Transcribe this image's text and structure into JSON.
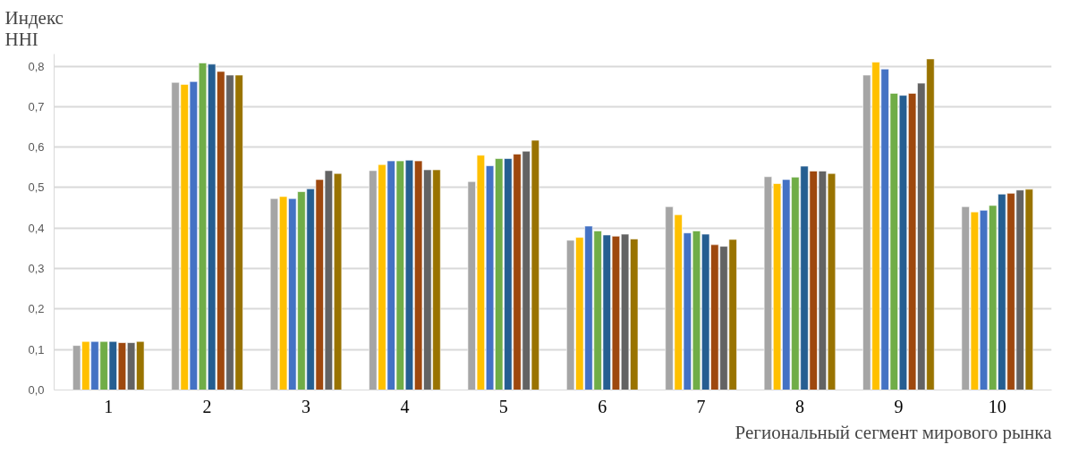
{
  "chart_data": {
    "type": "bar",
    "ylabel": "Индекс\nHHI",
    "xlabel": "Региональный сегмент мирового рынка",
    "categories": [
      "1",
      "2",
      "3",
      "4",
      "5",
      "6",
      "7",
      "8",
      "9",
      "10"
    ],
    "series": [
      {
        "color": "#a5a5a5",
        "values": [
          0.11,
          0.76,
          0.473,
          0.542,
          0.515,
          0.37,
          0.453,
          0.527,
          0.778,
          0.453
        ]
      },
      {
        "color": "#ffc000",
        "values": [
          0.12,
          0.755,
          0.478,
          0.557,
          0.58,
          0.377,
          0.433,
          0.51,
          0.81,
          0.44
        ]
      },
      {
        "color": "#4472c4",
        "values": [
          0.12,
          0.762,
          0.473,
          0.566,
          0.554,
          0.405,
          0.388,
          0.52,
          0.793,
          0.444
        ]
      },
      {
        "color": "#70ad47",
        "values": [
          0.12,
          0.808,
          0.49,
          0.566,
          0.572,
          0.393,
          0.393,
          0.526,
          0.733,
          0.456
        ]
      },
      {
        "color": "#255e91",
        "values": [
          0.12,
          0.805,
          0.497,
          0.568,
          0.572,
          0.383,
          0.385,
          0.553,
          0.728,
          0.484
        ]
      },
      {
        "color": "#9e480e",
        "values": [
          0.117,
          0.787,
          0.52,
          0.566,
          0.583,
          0.38,
          0.359,
          0.541,
          0.733,
          0.486
        ]
      },
      {
        "color": "#636363",
        "values": [
          0.117,
          0.778,
          0.542,
          0.544,
          0.59,
          0.385,
          0.355,
          0.541,
          0.758,
          0.494
        ]
      },
      {
        "color": "#997300",
        "values": [
          0.12,
          0.778,
          0.535,
          0.544,
          0.617,
          0.373,
          0.372,
          0.535,
          0.818,
          0.496
        ]
      }
    ],
    "ylim": [
      0,
      0.83
    ],
    "yticks": [
      {
        "value": 0,
        "label": "0,0"
      },
      {
        "value": 0.1,
        "label": "0,1"
      },
      {
        "value": 0.2,
        "label": "0,2"
      },
      {
        "value": 0.3,
        "label": "0,3"
      },
      {
        "value": 0.4,
        "label": "0,4"
      },
      {
        "value": 0.5,
        "label": "0,5"
      },
      {
        "value": 0.6,
        "label": "0,6"
      },
      {
        "value": 0.7,
        "label": "0,7"
      },
      {
        "value": 0.8,
        "label": "0,8"
      }
    ],
    "grid": "y"
  }
}
